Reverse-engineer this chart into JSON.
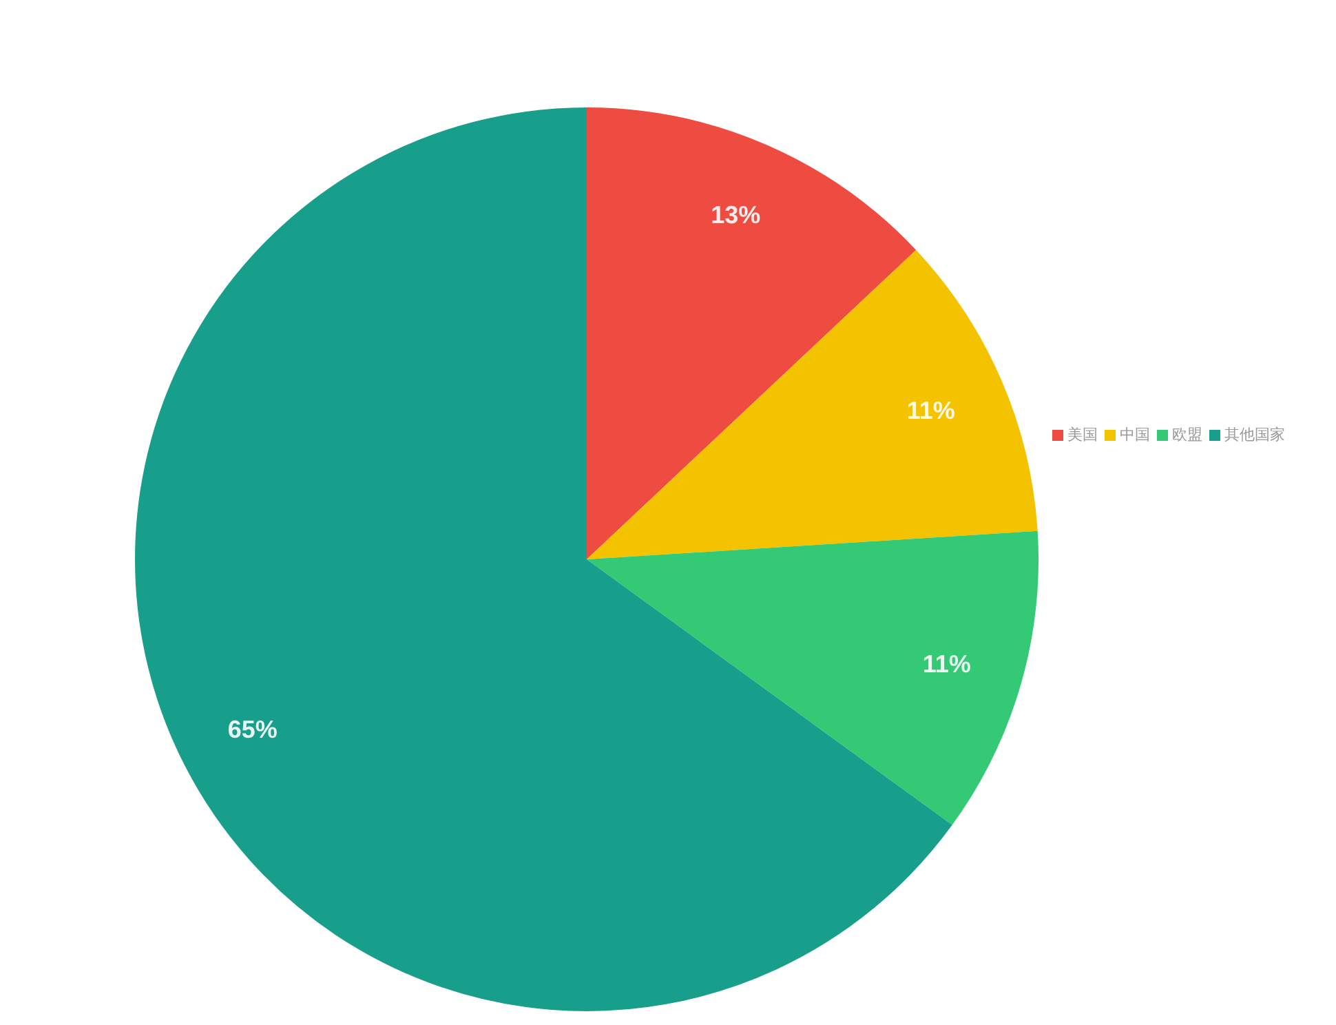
{
  "chart_data": {
    "type": "pie",
    "categories": [
      "美国",
      "中国",
      "欧盟",
      "其他国家"
    ],
    "values": [
      13,
      11,
      11,
      65
    ],
    "value_labels": [
      "13%",
      "11%",
      "11%",
      "65%"
    ],
    "colors": [
      "#ef4c41",
      "#f4c300",
      "#34c975",
      "#179f8b"
    ],
    "data_labels": true,
    "legend": "right"
  }
}
